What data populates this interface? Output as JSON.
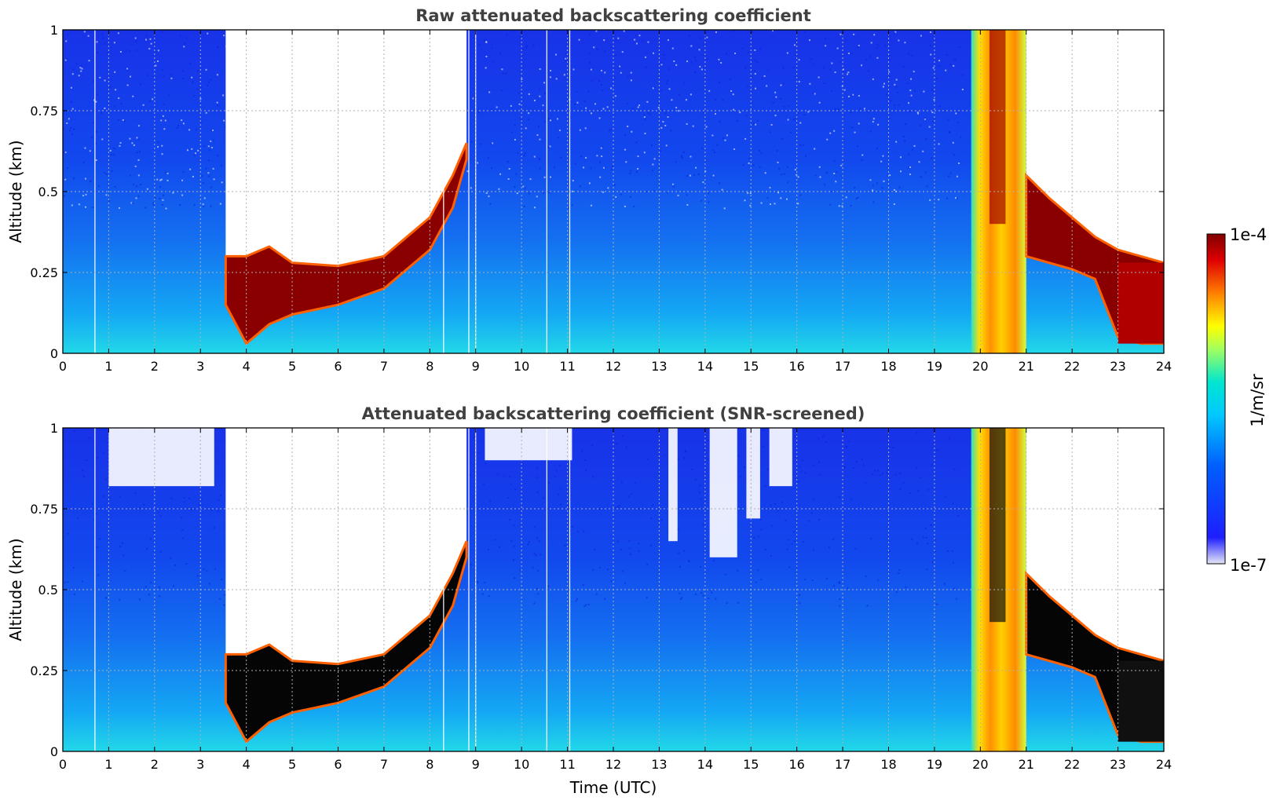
{
  "chart_data": [
    {
      "type": "heatmap",
      "title": "Raw attenuated backscattering coefficient",
      "xlabel": "",
      "ylabel": "Altitude (km)",
      "xlim": [
        0,
        24
      ],
      "ylim": [
        0,
        1
      ],
      "x_ticks": [
        "0",
        "1",
        "2",
        "3",
        "4",
        "5",
        "6",
        "7",
        "8",
        "9",
        "10",
        "11",
        "12",
        "13",
        "14",
        "15",
        "16",
        "17",
        "18",
        "19",
        "20",
        "21",
        "22",
        "23",
        "24"
      ],
      "y_ticks": [
        "0",
        "0.25",
        "0.5",
        "0.75",
        "1"
      ],
      "grid": true,
      "screened": false,
      "layer_top_km": [
        [
          3.55,
          0.3
        ],
        [
          4.0,
          0.3
        ],
        [
          4.5,
          0.33
        ],
        [
          5.0,
          0.28
        ],
        [
          6.0,
          0.27
        ],
        [
          7.0,
          0.3
        ],
        [
          7.5,
          0.36
        ],
        [
          8.0,
          0.42
        ],
        [
          8.5,
          0.55
        ],
        [
          8.8,
          0.65
        ]
      ],
      "layer_bottom_km": [
        [
          3.55,
          0.15
        ],
        [
          4.0,
          0.03
        ],
        [
          4.5,
          0.09
        ],
        [
          5.0,
          0.12
        ],
        [
          6.0,
          0.15
        ],
        [
          7.0,
          0.2
        ],
        [
          7.5,
          0.26
        ],
        [
          8.0,
          0.32
        ],
        [
          8.5,
          0.45
        ],
        [
          8.8,
          0.6
        ]
      ],
      "late_layer_top_km": [
        [
          21.0,
          0.55
        ],
        [
          21.5,
          0.48
        ],
        [
          22.0,
          0.42
        ],
        [
          22.5,
          0.36
        ],
        [
          23.0,
          0.32
        ],
        [
          23.5,
          0.3
        ],
        [
          24.0,
          0.28
        ]
      ],
      "late_layer_bottom_km": [
        [
          21.0,
          0.3
        ],
        [
          21.5,
          0.28
        ],
        [
          22.0,
          0.26
        ],
        [
          22.5,
          0.23
        ],
        [
          23.0,
          0.05
        ],
        [
          23.5,
          0.03
        ],
        [
          24.0,
          0.03
        ]
      ],
      "clear_region": {
        "x": [
          3.55,
          8.8
        ],
        "note": "no signal above layer"
      },
      "fog_band": [
        19.8,
        21.0
      ],
      "gap_lines": [
        0.7,
        8.3,
        8.85,
        9.0,
        10.55,
        11.05
      ]
    },
    {
      "type": "heatmap",
      "title": "Attenuated backscattering coefficient (SNR-screened)",
      "xlabel": "Time (UTC)",
      "ylabel": "Altitude (km)",
      "xlim": [
        0,
        24
      ],
      "ylim": [
        0,
        1
      ],
      "x_ticks": [
        "0",
        "1",
        "2",
        "3",
        "4",
        "5",
        "6",
        "7",
        "8",
        "9",
        "10",
        "11",
        "12",
        "13",
        "14",
        "15",
        "16",
        "17",
        "18",
        "19",
        "20",
        "21",
        "22",
        "23",
        "24"
      ],
      "y_ticks": [
        "0",
        "0.25",
        "0.5",
        "0.75",
        "1"
      ],
      "grid": true,
      "screened": true
    }
  ],
  "colorbar": {
    "label": "1/m/sr",
    "max_label": "1e-4",
    "min_label": "1e-7",
    "scale": "log",
    "colormap": [
      "#e6e6f7",
      "#1e1eff",
      "#00a0ff",
      "#00e6e6",
      "#80ff80",
      "#ffff00",
      "#ff8000",
      "#ff0000",
      "#800000"
    ]
  }
}
